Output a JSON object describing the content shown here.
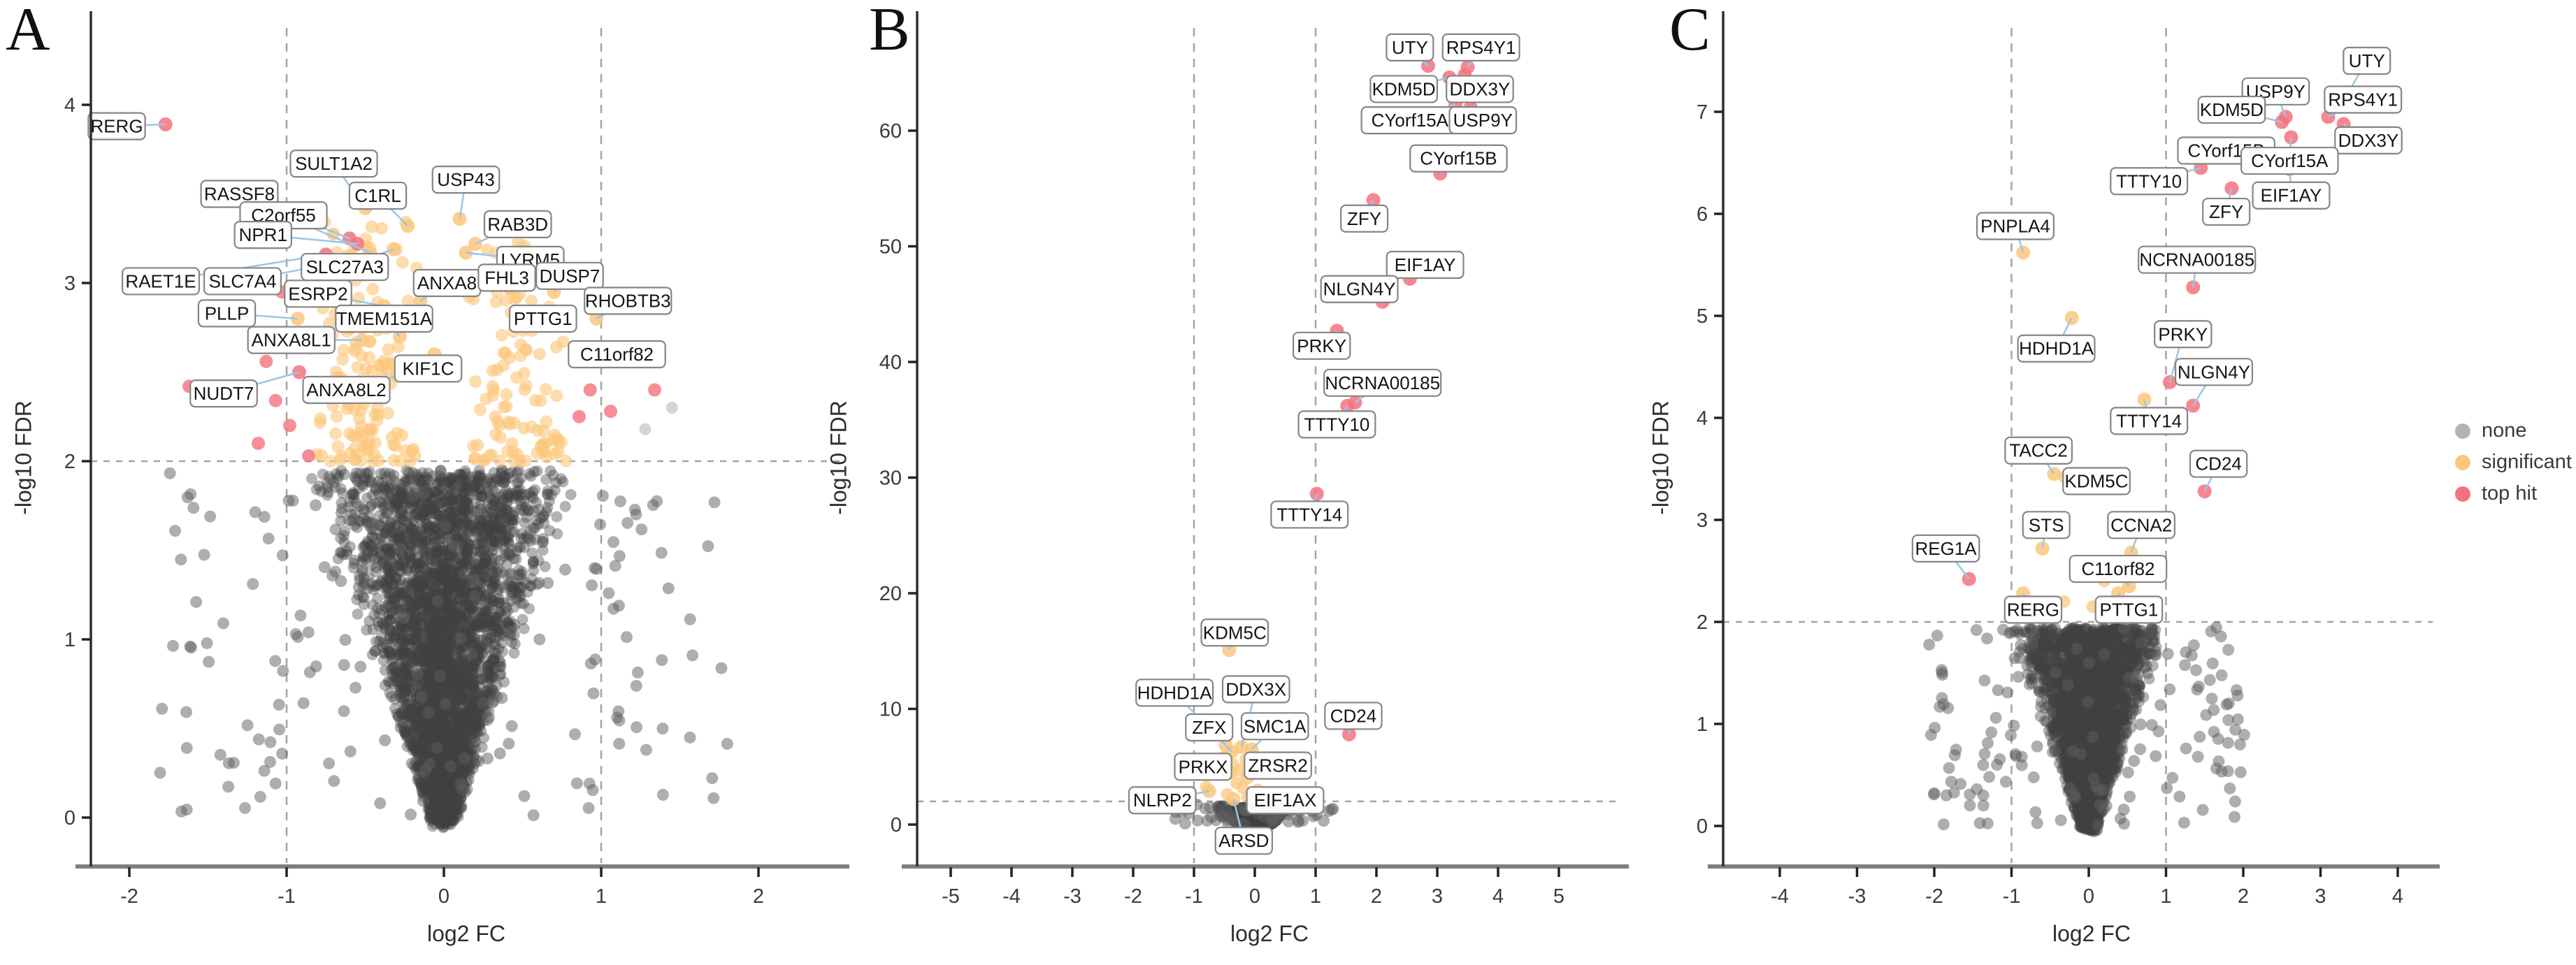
{
  "figure": {
    "background": "#ffffff"
  },
  "colors": {
    "none": "#b3b3b3",
    "background_mass": "#424242",
    "significant": "#fbc77d",
    "top_hit": "#f4727e",
    "leader_line": "#99c7e8",
    "dashed_line": "#a3a3a3",
    "axis_bar": "#7f7f7f",
    "axis_line": "#2f2f2f",
    "tick_text": "#3a3a3a",
    "label_box_fill": "#ffffff",
    "label_box_border": "#858585",
    "label_text": "#151515"
  },
  "legend": {
    "items": [
      {
        "label": "none",
        "color": "#b3b3b3"
      },
      {
        "label": "significant",
        "color": "#fbc77d"
      },
      {
        "label": "top hit",
        "color": "#f4727e"
      }
    ]
  },
  "chart_data": [
    {
      "type": "scatter",
      "letter": "A",
      "xlabel": "log2 FC",
      "ylabel": "-log10 FDR",
      "xticks": [
        -2,
        -1,
        0,
        1,
        2
      ],
      "yticks": [
        0,
        1,
        2,
        3,
        4
      ],
      "xlim": [
        -2.4,
        2.55
      ],
      "ylim": [
        -0.3,
        4.6
      ],
      "vlines": [
        -1,
        1
      ],
      "hline": 2,
      "grid": false,
      "genes": [
        {
          "n": "RERG",
          "x": -1.77,
          "y": 3.89,
          "c": "top hit",
          "lx": -2.08,
          "ly": 3.88
        },
        {
          "n": "RASSF8",
          "x": -0.6,
          "y": 3.25,
          "c": "top hit",
          "lx": -1.3,
          "ly": 3.5
        },
        {
          "n": "SULT1A2",
          "x": -0.5,
          "y": 3.42,
          "c": "significant",
          "lx": -0.7,
          "ly": 3.67
        },
        {
          "n": "C2orf55",
          "x": -0.47,
          "y": 3.17,
          "c": "significant",
          "lx": -1.02,
          "ly": 3.38
        },
        {
          "n": "C1RL",
          "x": -0.23,
          "y": 3.32,
          "c": "significant",
          "lx": -0.42,
          "ly": 3.49
        },
        {
          "n": "USP43",
          "x": 0.1,
          "y": 3.36,
          "c": "significant",
          "lx": 0.14,
          "ly": 3.58
        },
        {
          "n": "RAB3D",
          "x": 0.2,
          "y": 3.22,
          "c": "significant",
          "lx": 0.47,
          "ly": 3.33
        },
        {
          "n": "LYRM5",
          "x": 0.14,
          "y": 3.17,
          "c": "significant",
          "lx": 0.55,
          "ly": 3.13
        },
        {
          "n": "NPR1",
          "x": -0.55,
          "y": 3.22,
          "c": "top hit",
          "lx": -1.15,
          "ly": 3.27
        },
        {
          "n": "SLC27A3",
          "x": -0.32,
          "y": 3.19,
          "c": "significant",
          "lx": -0.63,
          "ly": 3.09
        },
        {
          "n": "RAET1E",
          "x": -0.75,
          "y": 3.16,
          "c": "top hit",
          "lx": -1.8,
          "ly": 3.01
        },
        {
          "n": "SLC7A4",
          "x": -0.6,
          "y": 3.13,
          "c": "top hit",
          "lx": -1.28,
          "ly": 3.01
        },
        {
          "n": "ESRP2",
          "x": -0.38,
          "y": 2.87,
          "c": "significant",
          "lx": -0.8,
          "ly": 2.94
        },
        {
          "n": "ANXA8",
          "x": -0.15,
          "y": 2.9,
          "c": "significant",
          "lx": 0.02,
          "ly": 3.0
        },
        {
          "n": "PLLP",
          "x": -0.93,
          "y": 2.8,
          "c": "significant",
          "lx": -1.38,
          "ly": 2.83
        },
        {
          "n": "FHL3",
          "x": 0.42,
          "y": 2.97,
          "c": "significant",
          "lx": 0.4,
          "ly": 3.03
        },
        {
          "n": "DUSP7",
          "x": 0.7,
          "y": 2.95,
          "c": "significant",
          "lx": 0.8,
          "ly": 3.04
        },
        {
          "n": "TMEM151A",
          "x": -0.28,
          "y": 2.7,
          "c": "significant",
          "lx": -0.38,
          "ly": 2.8
        },
        {
          "n": "PTTG1",
          "x": 0.63,
          "y": 2.77,
          "c": "significant",
          "lx": 0.63,
          "ly": 2.8
        },
        {
          "n": "RHOBTB3",
          "x": 0.97,
          "y": 2.8,
          "c": "significant",
          "lx": 1.17,
          "ly": 2.9
        },
        {
          "n": "ANXA8L1",
          "x": -0.52,
          "y": 2.68,
          "c": "significant",
          "lx": -0.97,
          "ly": 2.68
        },
        {
          "n": "C11orf82",
          "x": 0.97,
          "y": 2.6,
          "c": "significant",
          "lx": 1.1,
          "ly": 2.6
        },
        {
          "n": "KIF1C",
          "x": -0.06,
          "y": 2.6,
          "c": "significant",
          "lx": -0.1,
          "ly": 2.52
        },
        {
          "n": "ANXA8L2",
          "x": -0.3,
          "y": 2.48,
          "c": "significant",
          "lx": -0.62,
          "ly": 2.4
        },
        {
          "n": "NUDT7",
          "x": -0.92,
          "y": 2.5,
          "c": "top hit",
          "lx": -1.4,
          "ly": 2.38
        }
      ],
      "extra_points": {
        "top_hit": [
          [
            -1.62,
            2.42
          ],
          [
            -1.07,
            2.34
          ],
          [
            -1.18,
            2.1
          ],
          [
            -0.98,
            2.2
          ],
          [
            -0.86,
            2.03
          ],
          [
            -1.13,
            2.56
          ],
          [
            0.93,
            2.4
          ],
          [
            1.34,
            2.4
          ],
          [
            1.06,
            2.28
          ],
          [
            0.86,
            2.25
          ],
          [
            -1.03,
            2.95
          ],
          [
            -0.73,
            2.72
          ]
        ],
        "significant": [],
        "none": [
          [
            1.45,
            2.3
          ],
          [
            1.28,
            2.18
          ]
        ]
      },
      "sig_band": {
        "n": 260,
        "y_base": 2.0,
        "y_spread": 1.35,
        "x_min": 0.13,
        "x_max": 0.85,
        "seed": 11
      },
      "background": {
        "n": 3600,
        "y_max": 1.95,
        "width_base": 0.09,
        "width_slope": 0.42,
        "squat": false,
        "outliers": 170,
        "outlier_spread": 2.0,
        "seed": 7
      }
    },
    {
      "type": "scatter",
      "letter": "B",
      "xlabel": "log2 FC",
      "ylabel": "-log10 FDR",
      "xticks": [
        -5,
        -4,
        -3,
        -2,
        -1,
        0,
        1,
        2,
        3,
        4,
        5
      ],
      "yticks": [
        0,
        10,
        20,
        30,
        40,
        50,
        60
      ],
      "xlim": [
        -5.6,
        6.0
      ],
      "ylim": [
        -3.4,
        68.6
      ],
      "vlines": [
        -1,
        1
      ],
      "hline": 2,
      "grid": false,
      "genes": [
        {
          "n": "UTY",
          "x": 2.85,
          "y": 65.6,
          "c": "top hit",
          "lx": 2.55,
          "ly": 67.2
        },
        {
          "n": "RPS4Y1",
          "x": 3.5,
          "y": 65.5,
          "c": "top hit",
          "lx": 3.72,
          "ly": 67.2
        },
        {
          "n": "KDM5D",
          "x": 3.2,
          "y": 64.6,
          "c": "top hit",
          "lx": 2.45,
          "ly": 63.6
        },
        {
          "n": "DDX3Y",
          "x": 3.45,
          "y": 64.8,
          "c": "top hit",
          "lx": 3.7,
          "ly": 63.6
        },
        {
          "n": "CYorf15A",
          "x": 3.3,
          "y": 62.3,
          "c": "top hit",
          "lx": 2.55,
          "ly": 60.9
        },
        {
          "n": "USP9Y",
          "x": 3.55,
          "y": 62.0,
          "c": "top hit",
          "lx": 3.75,
          "ly": 60.9
        },
        {
          "n": "CYorf15B",
          "x": 3.05,
          "y": 56.3,
          "c": "top hit",
          "lx": 3.35,
          "ly": 57.6
        },
        {
          "n": "ZFY",
          "x": 1.95,
          "y": 54.0,
          "c": "top hit",
          "lx": 1.8,
          "ly": 52.4
        },
        {
          "n": "EIF1AY",
          "x": 2.55,
          "y": 47.2,
          "c": "top hit",
          "lx": 2.8,
          "ly": 48.4
        },
        {
          "n": "NLGN4Y",
          "x": 2.1,
          "y": 45.2,
          "c": "top hit",
          "lx": 1.72,
          "ly": 46.3
        },
        {
          "n": "PRKY",
          "x": 1.35,
          "y": 42.7,
          "c": "top hit",
          "lx": 1.1,
          "ly": 41.4
        },
        {
          "n": "NCRNA00185",
          "x": 1.65,
          "y": 36.5,
          "c": "top hit",
          "lx": 2.1,
          "ly": 38.2
        },
        {
          "n": "TTTY10",
          "x": 1.52,
          "y": 36.2,
          "c": "top hit",
          "lx": 1.35,
          "ly": 34.6
        },
        {
          "n": "TTTY14",
          "x": 1.02,
          "y": 28.6,
          "c": "top hit",
          "lx": 0.9,
          "ly": 26.8
        },
        {
          "n": "KDM5C",
          "x": -0.42,
          "y": 15.1,
          "c": "significant",
          "lx": -0.33,
          "ly": 16.6
        },
        {
          "n": "HDHD1A",
          "x": -0.48,
          "y": 6.9,
          "c": "significant",
          "lx": -1.32,
          "ly": 11.4
        },
        {
          "n": "DDX3X",
          "x": -0.22,
          "y": 6.7,
          "c": "significant",
          "lx": 0.02,
          "ly": 11.7
        },
        {
          "n": "CD24",
          "x": 1.55,
          "y": 7.8,
          "c": "top hit",
          "lx": 1.62,
          "ly": 9.4
        },
        {
          "n": "ZFX",
          "x": -0.38,
          "y": 6.3,
          "c": "significant",
          "lx": -0.75,
          "ly": 8.4
        },
        {
          "n": "SMC1A",
          "x": -0.05,
          "y": 6.5,
          "c": "significant",
          "lx": 0.33,
          "ly": 8.5
        },
        {
          "n": "PRKX",
          "x": -0.4,
          "y": 4.5,
          "c": "significant",
          "lx": -0.85,
          "ly": 5.0
        },
        {
          "n": "ZRSR2",
          "x": -0.12,
          "y": 4.1,
          "c": "significant",
          "lx": 0.38,
          "ly": 5.1
        },
        {
          "n": "NLRP2",
          "x": -0.75,
          "y": 2.9,
          "c": "significant",
          "lx": -1.52,
          "ly": 2.1
        },
        {
          "n": "EIF1AX",
          "x": -0.05,
          "y": 2.6,
          "c": "significant",
          "lx": 0.5,
          "ly": 2.1
        },
        {
          "n": "ARSD",
          "x": -0.35,
          "y": 2.2,
          "c": "significant",
          "lx": -0.18,
          "ly": -1.4
        }
      ],
      "extra_points": {
        "top_hit": [],
        "significant": [
          [
            -0.8,
            3.25
          ],
          [
            -0.52,
            5.8
          ],
          [
            -0.36,
            5.2
          ],
          [
            -0.3,
            3.6
          ],
          [
            -0.2,
            3.2
          ],
          [
            -0.45,
            2.6
          ],
          [
            -0.12,
            2.4
          ],
          [
            0.05,
            3.0
          ],
          [
            -0.25,
            4.7
          ],
          [
            -0.15,
            5.6
          ]
        ],
        "none": []
      },
      "sig_band": {
        "n": 0,
        "y_base": 2,
        "y_spread": 0,
        "x_min": 0,
        "x_max": 0,
        "seed": 12
      },
      "background": {
        "n": 2600,
        "y_max": 1.75,
        "width_base": 0.28,
        "width_slope": 0.28,
        "squat": true,
        "outliers": 60,
        "outlier_spread": 1.7,
        "seed": 8
      }
    },
    {
      "type": "scatter",
      "letter": "C",
      "xlabel": "log2 FC",
      "ylabel": "-log10 FDR",
      "xticks": [
        -4,
        -3,
        -2,
        -1,
        0,
        1,
        2,
        3,
        4
      ],
      "yticks": [
        0,
        1,
        2,
        3,
        4,
        5,
        6,
        7
      ],
      "xlim": [
        -4.6,
        4.45
      ],
      "ylim": [
        -0.38,
        7.8
      ],
      "vlines": [
        -1,
        1
      ],
      "hline": 2,
      "grid": false,
      "genes": [
        {
          "n": "UTY",
          "x": 3.25,
          "y": 7.05,
          "c": "top hit",
          "lx": 3.6,
          "ly": 7.5
        },
        {
          "n": "USP9Y",
          "x": 2.55,
          "y": 6.95,
          "c": "top hit",
          "lx": 2.42,
          "ly": 7.2
        },
        {
          "n": "RPS4Y1",
          "x": 3.1,
          "y": 6.95,
          "c": "top hit",
          "lx": 3.55,
          "ly": 7.12
        },
        {
          "n": "KDM5D",
          "x": 2.5,
          "y": 6.9,
          "c": "top hit",
          "lx": 1.85,
          "ly": 7.02
        },
        {
          "n": "DDX3Y",
          "x": 3.3,
          "y": 6.88,
          "c": "top hit",
          "lx": 3.62,
          "ly": 6.72
        },
        {
          "n": "CYorf15B",
          "x": 2.1,
          "y": 6.47,
          "c": "top hit",
          "lx": 1.78,
          "ly": 6.62
        },
        {
          "n": "CYorf15A",
          "x": 2.62,
          "y": 6.75,
          "c": "top hit",
          "lx": 2.6,
          "ly": 6.52
        },
        {
          "n": "TTTY10",
          "x": 1.45,
          "y": 6.45,
          "c": "top hit",
          "lx": 0.78,
          "ly": 6.32
        },
        {
          "n": "EIF1AY",
          "x": 2.6,
          "y": 6.44,
          "c": "top hit",
          "lx": 2.62,
          "ly": 6.18
        },
        {
          "n": "ZFY",
          "x": 1.85,
          "y": 6.25,
          "c": "top hit",
          "lx": 1.78,
          "ly": 6.02
        },
        {
          "n": "PNPLA4",
          "x": -0.85,
          "y": 5.62,
          "c": "significant",
          "lx": -0.95,
          "ly": 5.88
        },
        {
          "n": "NCRNA00185",
          "x": 1.35,
          "y": 5.28,
          "c": "top hit",
          "lx": 1.4,
          "ly": 5.55
        },
        {
          "n": "HDHD1A",
          "x": -0.22,
          "y": 4.98,
          "c": "significant",
          "lx": -0.42,
          "ly": 4.68
        },
        {
          "n": "PRKY",
          "x": 1.05,
          "y": 4.35,
          "c": "top hit",
          "lx": 1.22,
          "ly": 4.82
        },
        {
          "n": "NLGN4Y",
          "x": 1.35,
          "y": 4.12,
          "c": "top hit",
          "lx": 1.62,
          "ly": 4.45
        },
        {
          "n": "TTTY14",
          "x": 0.72,
          "y": 4.18,
          "c": "significant",
          "lx": 0.78,
          "ly": 3.97
        },
        {
          "n": "TACC2",
          "x": -0.45,
          "y": 3.45,
          "c": "significant",
          "lx": -0.65,
          "ly": 3.68
        },
        {
          "n": "CD24",
          "x": 1.5,
          "y": 3.28,
          "c": "top hit",
          "lx": 1.68,
          "ly": 3.55
        },
        {
          "n": "KDM5C",
          "x": -0.3,
          "y": 3.42,
          "c": "significant",
          "lx": 0.1,
          "ly": 3.38
        },
        {
          "n": "STS",
          "x": -0.6,
          "y": 2.72,
          "c": "significant",
          "lx": -0.55,
          "ly": 2.95
        },
        {
          "n": "CCNA2",
          "x": 0.55,
          "y": 2.68,
          "c": "significant",
          "lx": 0.68,
          "ly": 2.95
        },
        {
          "n": "REG1A",
          "x": -1.55,
          "y": 2.42,
          "c": "top hit",
          "lx": -1.85,
          "ly": 2.72
        },
        {
          "n": "C11orf82",
          "x": 0.52,
          "y": 2.35,
          "c": "significant",
          "lx": 0.38,
          "ly": 2.52
        },
        {
          "n": "RERG",
          "x": -0.85,
          "y": 2.28,
          "c": "significant",
          "lx": -0.72,
          "ly": 2.12
        },
        {
          "n": "PTTG1",
          "x": 0.38,
          "y": 2.28,
          "c": "significant",
          "lx": 0.52,
          "ly": 2.12
        }
      ],
      "extra_points": {
        "top_hit": [],
        "significant": [
          [
            -0.7,
            2.08
          ],
          [
            -0.32,
            2.2
          ],
          [
            0.2,
            2.4
          ],
          [
            -0.52,
            2.04
          ],
          [
            0.05,
            2.15
          ]
        ],
        "none": []
      },
      "sig_band": {
        "n": 0,
        "y_base": 2,
        "y_spread": 0,
        "x_min": 0,
        "x_max": 0,
        "seed": 13
      },
      "background": {
        "n": 3200,
        "y_max": 1.95,
        "width_base": 0.12,
        "width_slope": 0.5,
        "squat": false,
        "outliers": 150,
        "outlier_spread": 1.9,
        "seed": 9
      }
    }
  ]
}
